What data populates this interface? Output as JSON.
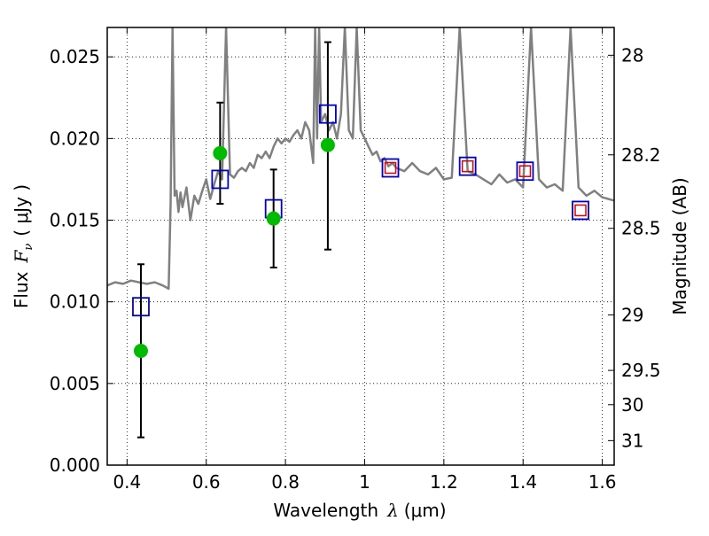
{
  "chart_data": {
    "type": "scatter",
    "xlabel_prefix": "Wavelength",
    "xlabel_symbol": "λ",
    "xlabel_unit": "(μm)",
    "ylabel_prefix": "Flux",
    "ylabel_symbol": "F",
    "ylabel_sub": "ν",
    "ylabel_unit": "( μJy )",
    "y2label": "Magnitude (AB)",
    "xlim": [
      0.35,
      1.63
    ],
    "ylim": [
      0.0,
      0.0268
    ],
    "grid": true,
    "x_ticks": [
      0.4,
      0.6,
      0.8,
      1.0,
      1.2,
      1.4,
      1.6
    ],
    "x_tick_labels": [
      "0.4",
      "0.6",
      "0.8",
      "1",
      "1.2",
      "1.4",
      "1.6"
    ],
    "y_ticks": [
      0.0,
      0.005,
      0.01,
      0.015,
      0.02,
      0.025
    ],
    "y_tick_labels": [
      "0.000",
      "0.005",
      "0.010",
      "0.015",
      "0.020",
      "0.025"
    ],
    "y2_ticks": [
      {
        "flux": 0.0251,
        "label": "28"
      },
      {
        "flux": 0.019,
        "label": "28.2"
      },
      {
        "flux": 0.0145,
        "label": "28.5"
      },
      {
        "flux": 0.0092,
        "label": "29"
      },
      {
        "flux": 0.0058,
        "label": "29.5"
      },
      {
        "flux": 0.0037,
        "label": "30"
      },
      {
        "flux": 0.0015,
        "label": "31"
      }
    ],
    "colors": {
      "model": "#808080",
      "observed": "#00bb00",
      "model_box": "#0000cc",
      "model_box_inner": "#dd0000",
      "errorbar": "#000000"
    },
    "series": [
      {
        "style": "line",
        "x": [
          0.35,
          0.37,
          0.39,
          0.41,
          0.43,
          0.45,
          0.47,
          0.49,
          0.505,
          0.51,
          0.515,
          0.52,
          0.525,
          0.53,
          0.535,
          0.54,
          0.55,
          0.56,
          0.57,
          0.58,
          0.59,
          0.6,
          0.61,
          0.62,
          0.63,
          0.64,
          0.65,
          0.66,
          0.67,
          0.68,
          0.69,
          0.7,
          0.71,
          0.72,
          0.73,
          0.74,
          0.75,
          0.76,
          0.77,
          0.78,
          0.79,
          0.8,
          0.81,
          0.82,
          0.83,
          0.84,
          0.85,
          0.86,
          0.87,
          0.875,
          0.88,
          0.885,
          0.89,
          0.9,
          0.91,
          0.92,
          0.93,
          0.94,
          0.95,
          0.96,
          0.97,
          0.98,
          0.99,
          1.0,
          1.01,
          1.02,
          1.03,
          1.04,
          1.05,
          1.06,
          1.07,
          1.08,
          1.1,
          1.12,
          1.14,
          1.16,
          1.18,
          1.2,
          1.22,
          1.24,
          1.26,
          1.28,
          1.3,
          1.32,
          1.34,
          1.36,
          1.38,
          1.4,
          1.42,
          1.44,
          1.46,
          1.48,
          1.5,
          1.52,
          1.54,
          1.56,
          1.58,
          1.6,
          1.63
        ],
        "y": [
          0.011,
          0.0112,
          0.0111,
          0.0113,
          0.0112,
          0.0111,
          0.0112,
          0.011,
          0.0108,
          0.016,
          0.0268,
          0.0165,
          0.0168,
          0.0155,
          0.0167,
          0.0158,
          0.017,
          0.015,
          0.0165,
          0.016,
          0.0168,
          0.0175,
          0.0163,
          0.0172,
          0.018,
          0.0175,
          0.0268,
          0.0178,
          0.0176,
          0.018,
          0.0182,
          0.018,
          0.0185,
          0.0182,
          0.019,
          0.0188,
          0.0192,
          0.0188,
          0.0195,
          0.02,
          0.0197,
          0.02,
          0.0198,
          0.0202,
          0.0205,
          0.02,
          0.021,
          0.0205,
          0.0185,
          0.0268,
          0.02,
          0.0268,
          0.021,
          0.0215,
          0.0205,
          0.021,
          0.02,
          0.0215,
          0.0268,
          0.0205,
          0.02,
          0.0268,
          0.0205,
          0.02,
          0.0195,
          0.019,
          0.0192,
          0.0186,
          0.0188,
          0.0183,
          0.0185,
          0.0182,
          0.018,
          0.0185,
          0.018,
          0.0178,
          0.0182,
          0.0175,
          0.0176,
          0.0268,
          0.018,
          0.0178,
          0.0175,
          0.0172,
          0.0178,
          0.0173,
          0.0175,
          0.017,
          0.0268,
          0.0175,
          0.017,
          0.0172,
          0.0168,
          0.0268,
          0.017,
          0.0165,
          0.0168,
          0.0164,
          0.0162
        ]
      },
      {
        "style": "errorbar",
        "x": [
          0.435,
          0.635,
          0.77,
          0.907
        ],
        "y": [
          0.007,
          0.0191,
          0.0151,
          0.0196
        ],
        "yerr_low": [
          0.0053,
          0.0031,
          0.003,
          0.0064
        ],
        "yerr_high": [
          0.0053,
          0.0031,
          0.003,
          0.0063
        ]
      },
      {
        "style": "square",
        "x": [
          0.435,
          0.635,
          0.77,
          0.907,
          1.065,
          1.26,
          1.405,
          1.545
        ],
        "y": [
          0.0097,
          0.0175,
          0.0157,
          0.0215,
          0.0182,
          0.0183,
          0.018,
          0.0156
        ],
        "inner": [
          false,
          false,
          false,
          false,
          true,
          true,
          true,
          true
        ]
      }
    ]
  }
}
